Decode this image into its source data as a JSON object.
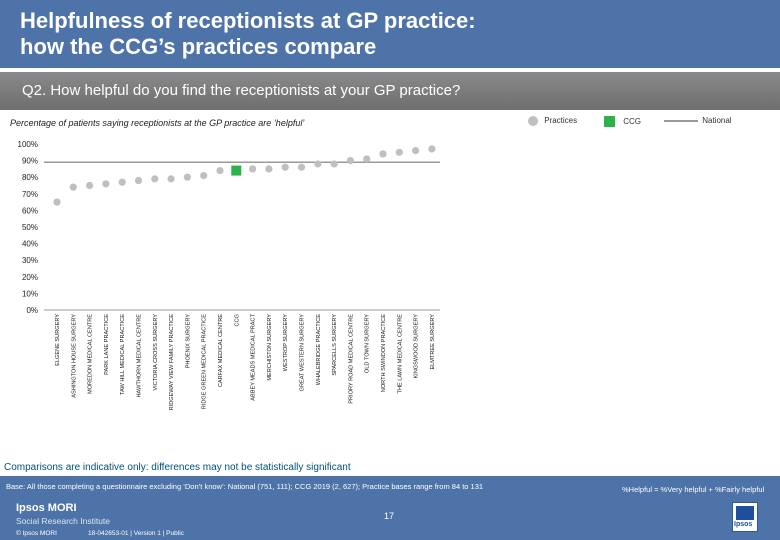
{
  "header": {
    "title_line1": "Helpfulness of receptionists at GP practice:",
    "title_line2": "how the CCG’s practices compare"
  },
  "question": "Q2. How helpful do you find the receptionists at your GP practice?",
  "legend": {
    "practices": "Practices",
    "ccg": "CCG",
    "national": "National"
  },
  "colors": {
    "header_bg": "#4e73a8",
    "practice_dot": "#bfbfbf",
    "ccg_marker": "#2bb24c",
    "national_line": "#9a9a9a"
  },
  "chart_data": {
    "type": "scatter",
    "subtitle": "Percentage of patients saying receptionists at the GP practice are ‘helpful’",
    "yticks": [
      "100%",
      "90%",
      "80%",
      "70%",
      "60%",
      "50%",
      "40%",
      "30%",
      "20%",
      "10%",
      "0%"
    ],
    "ylim": [
      0,
      100
    ],
    "national": 89,
    "categories": [
      "ELGENE SURGERY",
      "ASHINGTON HOUSE SURGERY",
      "MOREDON MEDICAL CENTRE",
      "PARK LANE PRACTICE",
      "TAW HILL MEDICAL PRACTICE",
      "HAWTHORN MEDICAL CENTRE",
      "VICTORIA CROSS SURGERY",
      "RIDGEWAY VIEW FAMILY PRACTICE",
      "PHOENIX SURGERY",
      "RIDGE GREEN MEDICAL PRACTICE",
      "CARFAX MEDICAL CENTRE",
      "CCG",
      "ABBEY MEADS MEDICAL PRACT",
      "MERCHISTON SURGERY",
      "WESTROP SURGERY",
      "GREAT WESTERN SURGERY",
      "WHALEBRIDGE PRACTICE",
      "SPARCELLS SURGERY",
      "PRIORY ROAD MEDICAL CENTRE",
      "OLD TOWN SURGERY",
      "NORTH SWINDON PRACTICE",
      "THE LAWN MEDICAL CENTRE",
      "KINGSWOOD SURGERY",
      "ELMTREE SURGERY"
    ],
    "values": [
      65,
      74,
      75,
      76,
      77,
      78,
      79,
      79,
      80,
      81,
      84,
      84,
      85,
      85,
      86,
      86,
      88,
      88,
      90,
      91,
      94,
      95,
      96,
      97
    ],
    "ccg_index": 11
  },
  "notes": {
    "disclaimer": "Comparisons are indicative only: differences may not be statistically significant",
    "base": "Base: All those completing a questionnaire excluding ‘Don’t know’: National (751, 111); CCG 2019 (2, 627); Practice bases range from 84 to 131",
    "definition": "%Helpful = %Very helpful + %Fairly helpful"
  },
  "footer": {
    "page_number": "17",
    "brand_line1": "Ipsos MORI",
    "brand_line2": "Social Research Institute",
    "copyright": "© Ipsos MORI",
    "job_ref": "18-042653-01 | Version 1 | Public",
    "logo_text": "Ipsos"
  }
}
